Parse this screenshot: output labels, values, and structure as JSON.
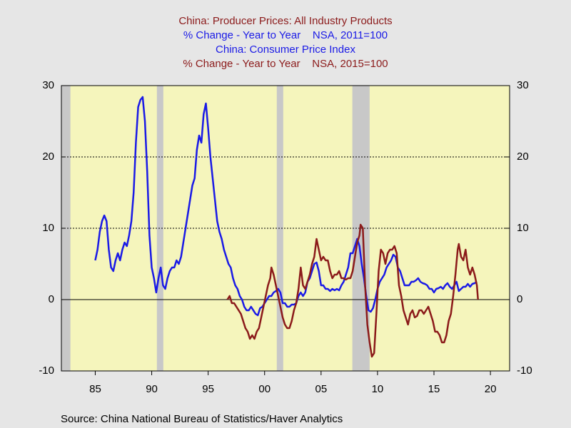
{
  "chart_data": {
    "type": "line",
    "titles": [
      {
        "text": "China: Producer Prices: All Industry Products",
        "color": "#8b1a1a"
      },
      {
        "text": "% Change - Year to Year    NSA, 2011=100",
        "color": "#1a1ae6"
      },
      {
        "text": "China: Consumer Price Index",
        "color": "#1a1ae6"
      },
      {
        "text": "% Change - Year to Year    NSA, 2015=100",
        "color": "#8b1a1a"
      }
    ],
    "source": "Source:  China National Bureau of Statistics/Haver Analytics",
    "xlim": [
      1982,
      2021.7
    ],
    "xticks": [
      {
        "value": 1985,
        "label": "85"
      },
      {
        "value": 1990,
        "label": "90"
      },
      {
        "value": 1995,
        "label": "95"
      },
      {
        "value": 2000,
        "label": "00"
      },
      {
        "value": 2005,
        "label": "05"
      },
      {
        "value": 2010,
        "label": "10"
      },
      {
        "value": 2015,
        "label": "15"
      },
      {
        "value": 2020,
        "label": "20"
      }
    ],
    "ylim": [
      -10,
      30
    ],
    "yticks": [
      -10,
      0,
      10,
      20,
      30
    ],
    "y2lim": [
      -10,
      30
    ],
    "y2ticks": [
      -10,
      0,
      10,
      20,
      30
    ],
    "grid": true,
    "plot_color": "#f5f5bc",
    "shade_color": "#c8c8c8",
    "shaded_periods": [
      [
        1982,
        1982.8
      ],
      [
        1990.46,
        1991.03
      ],
      [
        2001.08,
        2001.65
      ],
      [
        2007.77,
        2009.3
      ]
    ],
    "series": [
      {
        "color": "#1a1ae6",
        "x": [
          1985.0,
          1985.2,
          1985.4,
          1985.6,
          1985.8,
          1986.0,
          1986.2,
          1986.4,
          1986.6,
          1986.8,
          1987.0,
          1987.2,
          1987.4,
          1987.6,
          1987.8,
          1988.0,
          1988.2,
          1988.4,
          1988.6,
          1988.8,
          1989.0,
          1989.2,
          1989.4,
          1989.6,
          1989.8,
          1990.0,
          1990.2,
          1990.4,
          1990.6,
          1990.8,
          1991.0,
          1991.2,
          1991.4,
          1991.6,
          1991.8,
          1992.0,
          1992.2,
          1992.4,
          1992.6,
          1992.8,
          1993.0,
          1993.2,
          1993.4,
          1993.6,
          1993.8,
          1994.0,
          1994.2,
          1994.4,
          1994.6,
          1994.8,
          1995.0,
          1995.2,
          1995.4,
          1995.6,
          1995.8,
          1996.0,
          1996.2,
          1996.4,
          1996.6,
          1996.8,
          1997.0,
          1997.2,
          1997.4,
          1997.6,
          1997.8,
          1998.0,
          1998.2,
          1998.4,
          1998.6,
          1998.8,
          1999.0,
          1999.2,
          1999.4,
          1999.6,
          1999.8,
          2000.0,
          2000.2,
          2000.4,
          2000.6,
          2000.8,
          2001.0,
          2001.2,
          2001.4,
          2001.6,
          2001.8,
          2002.0,
          2002.2,
          2002.4,
          2002.6,
          2002.8,
          2003.0,
          2003.2,
          2003.4,
          2003.6,
          2003.8,
          2004.0,
          2004.2,
          2004.4,
          2004.6,
          2004.8,
          2005.0,
          2005.2,
          2005.4,
          2005.6,
          2005.8,
          2006.0,
          2006.2,
          2006.4,
          2006.6,
          2006.8,
          2007.0,
          2007.2,
          2007.4,
          2007.6,
          2007.8,
          2008.0,
          2008.2,
          2008.4,
          2008.6,
          2008.8,
          2009.0,
          2009.2,
          2009.4,
          2009.6,
          2009.8,
          2010.0,
          2010.2,
          2010.4,
          2010.6,
          2010.8,
          2011.0,
          2011.2,
          2011.4,
          2011.6,
          2011.8,
          2012.0,
          2012.2,
          2012.4,
          2012.6,
          2012.8,
          2013.0,
          2013.2,
          2013.4,
          2013.6,
          2013.8,
          2014.0,
          2014.2,
          2014.4,
          2014.6,
          2014.8,
          2015.0,
          2015.2,
          2015.4,
          2015.6,
          2015.8,
          2016.0,
          2016.2,
          2016.4,
          2016.6,
          2016.8,
          2017.0,
          2017.2,
          2017.4,
          2017.6,
          2017.8,
          2018.0,
          2018.2,
          2018.4,
          2018.6,
          2018.8
        ],
        "values": [
          5.5,
          7,
          9.5,
          11,
          11.8,
          11,
          7,
          4.5,
          4,
          5.5,
          6.5,
          5.5,
          7,
          8,
          7.5,
          9,
          11,
          15,
          22,
          27,
          28,
          28.4,
          25,
          18,
          9,
          4.5,
          3,
          1,
          3,
          4.5,
          2,
          1.5,
          3,
          4,
          4.5,
          4.5,
          5.5,
          5,
          6,
          8,
          10,
          12,
          14,
          16,
          17,
          21,
          23,
          22,
          26,
          27.5,
          24,
          20,
          17,
          14,
          11,
          9.5,
          8.5,
          7,
          6,
          5,
          4.5,
          3,
          2,
          1.5,
          0.5,
          0,
          -1,
          -1.5,
          -1.5,
          -1,
          -1.5,
          -2,
          -2.2,
          -1.2,
          -1,
          -0.5,
          0,
          0.5,
          0.5,
          1,
          1.2,
          1.5,
          1,
          -0.5,
          -0.5,
          -1,
          -1,
          -0.7,
          -0.7,
          -0.5,
          0.5,
          1,
          0.5,
          1,
          2.5,
          3,
          4,
          5,
          5.2,
          4,
          2,
          2,
          1.5,
          1.5,
          1.2,
          1.5,
          1.3,
          1.5,
          1.3,
          2,
          2.5,
          3.5,
          4.5,
          6.5,
          6.5,
          7.5,
          8.5,
          7.5,
          5,
          3,
          0.5,
          -1.5,
          -1.7,
          -1.2,
          0,
          1.5,
          2.5,
          3,
          3.5,
          4.5,
          5,
          5.5,
          6.3,
          6,
          4.5,
          4,
          3,
          2,
          2,
          2,
          2.5,
          2.5,
          2.7,
          3,
          2.5,
          2.3,
          2.2,
          2,
          1.5,
          1.5,
          1.0,
          1.5,
          1.6,
          1.8,
          1.5,
          2,
          2.3,
          1.8,
          1.5,
          2,
          2.5,
          1.2,
          1.5,
          1.8,
          1.8,
          2.2,
          1.8,
          2.2,
          2.3,
          2.5
        ]
      },
      {
        "color": "#8b1a1a",
        "x": [
          1996.7,
          1996.9,
          1997.1,
          1997.3,
          1997.5,
          1997.7,
          1997.9,
          1998.1,
          1998.3,
          1998.5,
          1998.7,
          1998.9,
          1999.1,
          1999.3,
          1999.5,
          1999.7,
          1999.9,
          2000.1,
          2000.3,
          2000.5,
          2000.6,
          2000.8,
          2001.0,
          2001.2,
          2001.4,
          2001.6,
          2001.8,
          2002.0,
          2002.2,
          2002.4,
          2002.6,
          2002.8,
          2003.0,
          2003.2,
          2003.4,
          2003.6,
          2003.8,
          2004.0,
          2004.2,
          2004.4,
          2004.6,
          2004.8,
          2005.0,
          2005.2,
          2005.4,
          2005.6,
          2005.8,
          2006.0,
          2006.2,
          2006.4,
          2006.6,
          2006.8,
          2007.0,
          2007.2,
          2007.4,
          2007.6,
          2007.8,
          2008.0,
          2008.2,
          2008.4,
          2008.5,
          2008.7,
          2008.9,
          2009.1,
          2009.3,
          2009.5,
          2009.7,
          2009.9,
          2010.1,
          2010.3,
          2010.5,
          2010.7,
          2010.9,
          2011.1,
          2011.3,
          2011.5,
          2011.7,
          2011.9,
          2012.1,
          2012.3,
          2012.5,
          2012.7,
          2012.9,
          2013.1,
          2013.3,
          2013.5,
          2013.7,
          2013.9,
          2014.1,
          2014.3,
          2014.5,
          2014.7,
          2014.9,
          2015.1,
          2015.3,
          2015.5,
          2015.7,
          2015.9,
          2016.1,
          2016.3,
          2016.5,
          2016.7,
          2016.9,
          2017.1,
          2017.2,
          2017.4,
          2017.6,
          2017.8,
          2018.0,
          2018.2,
          2018.4,
          2018.6,
          2018.8,
          2018.9
        ],
        "values": [
          0,
          0.5,
          -0.5,
          -0.5,
          -1,
          -1.5,
          -2,
          -3,
          -4,
          -4.5,
          -5.5,
          -5,
          -5.5,
          -4.5,
          -4,
          -2.5,
          -1,
          0.5,
          2,
          3,
          4.5,
          3.5,
          2,
          0.5,
          -1,
          -2.5,
          -3.5,
          -4,
          -4,
          -3,
          -1.5,
          -0.5,
          1.5,
          4.5,
          2,
          1.5,
          2.5,
          3.5,
          5,
          6,
          8.5,
          7,
          5.5,
          6,
          5.5,
          5.5,
          4,
          3,
          3.5,
          3.5,
          4,
          3,
          3,
          2.8,
          3,
          3,
          4,
          6,
          8,
          9,
          10.5,
          10,
          2,
          -3.5,
          -6,
          -8,
          -7.5,
          -2,
          4,
          7,
          6.5,
          5,
          6.5,
          7,
          7,
          7.5,
          6.5,
          2,
          0.5,
          -1.5,
          -2.5,
          -3.5,
          -2,
          -1.5,
          -2.5,
          -2.3,
          -1.5,
          -1.5,
          -2,
          -1.5,
          -1,
          -2,
          -3,
          -4.5,
          -4.5,
          -5,
          -6,
          -6,
          -5,
          -3,
          -2,
          0.5,
          3.5,
          7,
          7.8,
          6,
          5.5,
          7,
          4.5,
          3.5,
          4.5,
          3.5,
          2,
          0
        ]
      }
    ]
  }
}
